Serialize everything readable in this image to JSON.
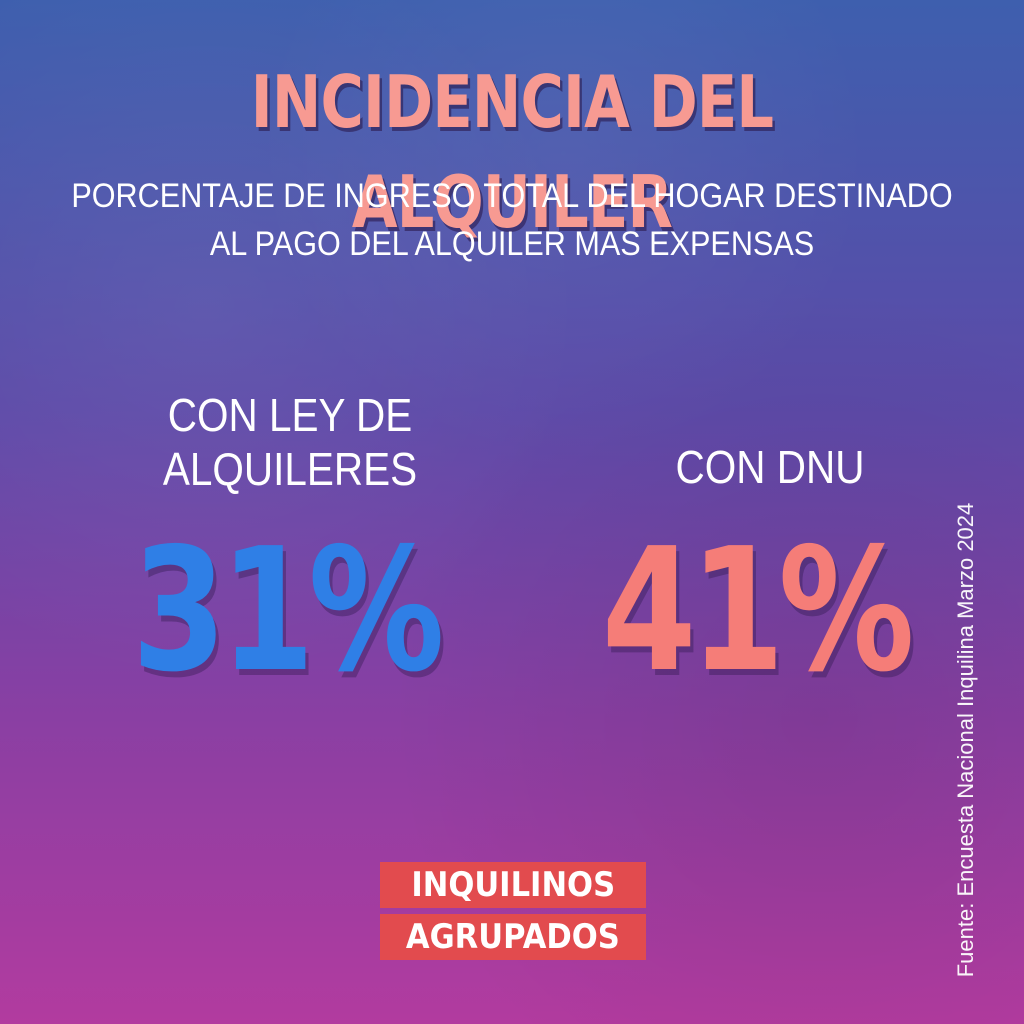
{
  "header": {
    "title": "INCIDENCIA DEL ALQUILER",
    "subtitle_line1": "PORCENTAJE DE INGRESO TOTAL DEL HOGAR DESTINADO",
    "subtitle_line2": "AL PAGO DEL ALQUILER MAS EXPENSAS"
  },
  "comparison": {
    "left": {
      "label_line1": "CON LEY DE",
      "label_line2": "ALQUILERES",
      "value": "31%",
      "color": "#2f7fe6"
    },
    "right": {
      "label_line1": "CON DNU",
      "value": "41%",
      "color": "#f57d78"
    }
  },
  "source": "Fuente: Encuesta Nacional Inquilina Marzo 2024",
  "logo": {
    "line1": "INQUILINOS",
    "line2": "AGRUPADOS",
    "color": "#e24b4e"
  },
  "colors": {
    "title": "#f79a92",
    "background_top": "#3e5fae",
    "background_bottom": "#b23b9f"
  }
}
